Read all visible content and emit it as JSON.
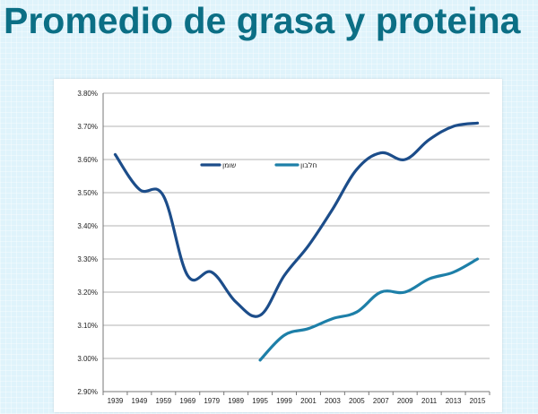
{
  "slide": {
    "title": "Promedio de grasa y proteina"
  },
  "colors": {
    "fat": "#1c4d8a",
    "protein": "#1d7fa8",
    "title": "#0c6f85",
    "grid": "#9a9a9a"
  },
  "chart_data": {
    "type": "line",
    "title": "",
    "xlabel": "",
    "ylabel": "",
    "categories": [
      "1939",
      "1949",
      "1959",
      "1969",
      "1979",
      "1989",
      "1995",
      "1999",
      "2001",
      "2003",
      "2005",
      "2007",
      "2009",
      "2011",
      "2013",
      "2015"
    ],
    "y_ticks": [
      "2.90%",
      "3.00%",
      "3.10%",
      "3.20%",
      "3.30%",
      "3.40%",
      "3.50%",
      "3.60%",
      "3.70%",
      "3.80%"
    ],
    "ylim": [
      2.9,
      3.8
    ],
    "grid": true,
    "legend_position": "top-center",
    "series": [
      {
        "name": "שומן",
        "values": [
          3.615,
          3.51,
          3.49,
          3.25,
          3.26,
          3.17,
          3.13,
          3.25,
          3.34,
          3.45,
          3.57,
          3.62,
          3.6,
          3.66,
          3.7,
          3.71
        ]
      },
      {
        "name": "חלבון",
        "values": [
          null,
          null,
          null,
          null,
          null,
          null,
          2.995,
          3.07,
          3.09,
          3.12,
          3.14,
          3.2,
          3.2,
          3.24,
          3.26,
          3.3
        ]
      }
    ]
  }
}
